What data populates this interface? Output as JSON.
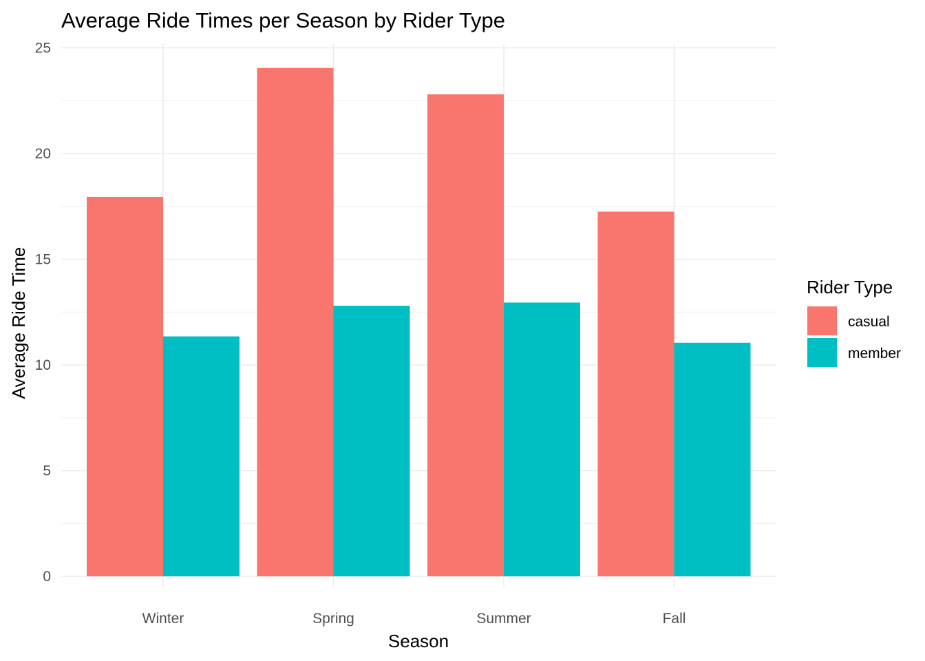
{
  "chart_data": {
    "type": "bar",
    "title": "Average Ride Times per Season by Rider Type",
    "xlabel": "Season",
    "ylabel": "Average Ride Time",
    "categories": [
      "Winter",
      "Spring",
      "Summer",
      "Fall"
    ],
    "series": [
      {
        "name": "casual",
        "color": "#F8766D",
        "values": [
          17.95,
          24.05,
          22.8,
          17.25
        ]
      },
      {
        "name": "member",
        "color": "#00BFC4",
        "values": [
          11.35,
          12.8,
          12.95,
          11.05
        ]
      }
    ],
    "ylim": [
      0,
      25
    ],
    "yticks": [
      0,
      5,
      10,
      15,
      20,
      25
    ],
    "grid": true,
    "legend": {
      "title": "Rider Type",
      "position": "right"
    }
  }
}
